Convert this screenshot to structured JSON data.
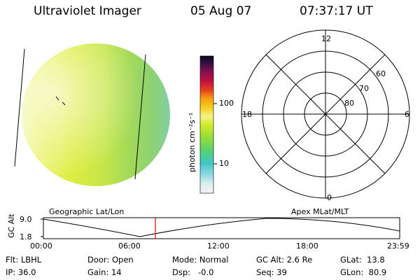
{
  "header": {
    "instrument": "Ultraviolet Imager",
    "date": "05 Aug 07",
    "time": "07:37:17 UT"
  },
  "colorbar": {
    "unit_label": "photon cm⁻²s⁻¹",
    "ticks": [
      "100",
      "10"
    ]
  },
  "polar": {
    "mlt_labels": [
      "12",
      "18",
      "6",
      "0"
    ],
    "lat_labels": [
      "60",
      "70",
      "80"
    ]
  },
  "altitude_plot": {
    "left_label": "Geographic Lat/Lon",
    "right_label": "Apex MLat/MLT",
    "ylabel": "GC Alt",
    "yticks": [
      "9.0",
      "1.8"
    ],
    "xticks": [
      "00:00",
      "06:00",
      "12:00",
      "18:00",
      "23:59"
    ],
    "marker_color": "#e00000"
  },
  "status": {
    "flt": "Flt: LBHL",
    "ip": "IP: 36.0",
    "door": "Door: Open",
    "gain": "Gain: 14",
    "mode": "Mode: Normal",
    "dsp": "Dsp:   -0.0",
    "gcalt": "GC Alt: 2.6 Re",
    "seq": "Seq: 39",
    "glat": "GLat:  13.8",
    "glon": "GLon:  80.9"
  },
  "colors": {
    "disk_bright": "#f2f5a0",
    "disk_yellow": "#dfee3a",
    "disk_green": "#9fd85a",
    "disk_teal": "#7fcf9a"
  }
}
